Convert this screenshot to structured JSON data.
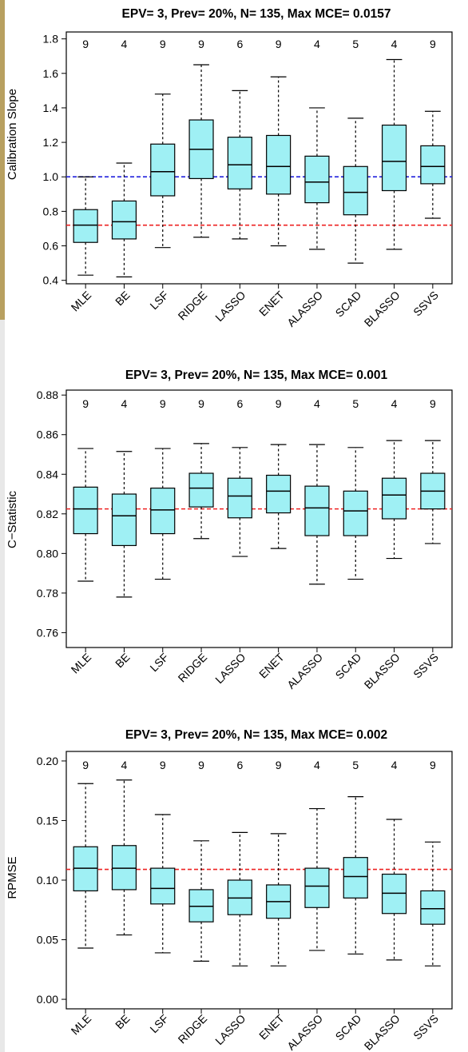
{
  "chart_data": [
    {
      "type": "boxplot",
      "title": "EPV= 3, Prev= 20%, N= 135, Max MCE= 0.0157",
      "ylabel": "Calibration Slope",
      "xlabel": "",
      "ylim": [
        0.38,
        1.84
      ],
      "yticks": [
        "0.4",
        "0.6",
        "0.8",
        "1.0",
        "1.2",
        "1.4",
        "1.6",
        "1.8"
      ],
      "categories": [
        "MLE",
        "BE",
        "LSF",
        "RIDGE",
        "LASSO",
        "ENET",
        "ALASSO",
        "SCAD",
        "BLASSO",
        "SSVS"
      ],
      "top_labels": [
        "9",
        "4",
        "9",
        "9",
        "6",
        "9",
        "4",
        "5",
        "4",
        "9"
      ],
      "boxes": [
        {
          "min": 0.43,
          "q1": 0.62,
          "median": 0.72,
          "q3": 0.81,
          "max": 1.0
        },
        {
          "min": 0.42,
          "q1": 0.64,
          "median": 0.74,
          "q3": 0.86,
          "max": 1.08
        },
        {
          "min": 0.59,
          "q1": 0.89,
          "median": 1.03,
          "q3": 1.19,
          "max": 1.48
        },
        {
          "min": 0.65,
          "q1": 0.99,
          "median": 1.16,
          "q3": 1.33,
          "max": 1.65
        },
        {
          "min": 0.64,
          "q1": 0.93,
          "median": 1.07,
          "q3": 1.23,
          "max": 1.5
        },
        {
          "min": 0.6,
          "q1": 0.9,
          "median": 1.06,
          "q3": 1.24,
          "max": 1.58
        },
        {
          "min": 0.58,
          "q1": 0.85,
          "median": 0.97,
          "q3": 1.12,
          "max": 1.4
        },
        {
          "min": 0.5,
          "q1": 0.78,
          "median": 0.91,
          "q3": 1.06,
          "max": 1.34
        },
        {
          "min": 0.58,
          "q1": 0.92,
          "median": 1.09,
          "q3": 1.3,
          "max": 1.68
        },
        {
          "min": 0.76,
          "q1": 0.96,
          "median": 1.06,
          "q3": 1.18,
          "max": 1.38
        }
      ],
      "reference_lines": [
        {
          "y": 1.0,
          "color": "#2222dd"
        },
        {
          "y": 0.72,
          "color": "#ee2222"
        }
      ]
    },
    {
      "type": "boxplot",
      "title": "EPV= 3, Prev= 20%, N= 135, Max MCE= 0.001",
      "ylabel": "C−Statistic",
      "xlabel": "",
      "ylim": [
        0.7525,
        0.8825
      ],
      "yticks": [
        "0.76",
        "0.78",
        "0.80",
        "0.82",
        "0.84",
        "0.86",
        "0.88"
      ],
      "categories": [
        "MLE",
        "BE",
        "LSF",
        "RIDGE",
        "LASSO",
        "ENET",
        "ALASSO",
        "SCAD",
        "BLASSO",
        "SSVS"
      ],
      "top_labels": [
        "9",
        "4",
        "9",
        "9",
        "6",
        "9",
        "4",
        "5",
        "4",
        "9"
      ],
      "boxes": [
        {
          "min": 0.786,
          "q1": 0.81,
          "median": 0.8225,
          "q3": 0.8335,
          "max": 0.853
        },
        {
          "min": 0.778,
          "q1": 0.804,
          "median": 0.819,
          "q3": 0.83,
          "max": 0.8515
        },
        {
          "min": 0.787,
          "q1": 0.81,
          "median": 0.822,
          "q3": 0.833,
          "max": 0.853
        },
        {
          "min": 0.8075,
          "q1": 0.8235,
          "median": 0.833,
          "q3": 0.8405,
          "max": 0.8555
        },
        {
          "min": 0.7985,
          "q1": 0.818,
          "median": 0.829,
          "q3": 0.838,
          "max": 0.8535
        },
        {
          "min": 0.8025,
          "q1": 0.8205,
          "median": 0.8315,
          "q3": 0.8395,
          "max": 0.855
        },
        {
          "min": 0.7845,
          "q1": 0.809,
          "median": 0.823,
          "q3": 0.834,
          "max": 0.855
        },
        {
          "min": 0.787,
          "q1": 0.809,
          "median": 0.8215,
          "q3": 0.8315,
          "max": 0.8535
        },
        {
          "min": 0.7975,
          "q1": 0.8175,
          "median": 0.8295,
          "q3": 0.838,
          "max": 0.857
        },
        {
          "min": 0.805,
          "q1": 0.8225,
          "median": 0.8315,
          "q3": 0.8405,
          "max": 0.857
        }
      ],
      "reference_lines": [
        {
          "y": 0.8225,
          "color": "#ee2222"
        }
      ]
    },
    {
      "type": "boxplot",
      "title": "EPV= 3, Prev= 20%, N= 135, Max MCE= 0.002",
      "ylabel": "RPMSE",
      "xlabel": "",
      "ylim": [
        -0.008,
        0.208
      ],
      "yticks": [
        "0.00",
        "0.05",
        "0.10",
        "0.15",
        "0.20"
      ],
      "categories": [
        "MLE",
        "BE",
        "LSF",
        "RIDGE",
        "LASSO",
        "ENET",
        "ALASSO",
        "SCAD",
        "BLASSO",
        "SSVS"
      ],
      "top_labels": [
        "9",
        "4",
        "9",
        "9",
        "6",
        "9",
        "4",
        "5",
        "4",
        "9"
      ],
      "boxes": [
        {
          "min": 0.043,
          "q1": 0.091,
          "median": 0.11,
          "q3": 0.128,
          "max": 0.181
        },
        {
          "min": 0.054,
          "q1": 0.092,
          "median": 0.11,
          "q3": 0.129,
          "max": 0.184
        },
        {
          "min": 0.039,
          "q1": 0.08,
          "median": 0.093,
          "q3": 0.11,
          "max": 0.155
        },
        {
          "min": 0.032,
          "q1": 0.065,
          "median": 0.078,
          "q3": 0.092,
          "max": 0.133
        },
        {
          "min": 0.028,
          "q1": 0.071,
          "median": 0.085,
          "q3": 0.1,
          "max": 0.14
        },
        {
          "min": 0.028,
          "q1": 0.068,
          "median": 0.082,
          "q3": 0.096,
          "max": 0.139
        },
        {
          "min": 0.041,
          "q1": 0.077,
          "median": 0.095,
          "q3": 0.11,
          "max": 0.16
        },
        {
          "min": 0.038,
          "q1": 0.085,
          "median": 0.103,
          "q3": 0.119,
          "max": 0.17
        },
        {
          "min": 0.033,
          "q1": 0.072,
          "median": 0.089,
          "q3": 0.105,
          "max": 0.151
        },
        {
          "min": 0.028,
          "q1": 0.063,
          "median": 0.076,
          "q3": 0.091,
          "max": 0.132
        }
      ],
      "reference_lines": [
        {
          "y": 0.109,
          "color": "#ee2222"
        }
      ]
    }
  ],
  "style": {
    "box_fill": "#9ff0f4",
    "box_stroke": "#000000"
  }
}
